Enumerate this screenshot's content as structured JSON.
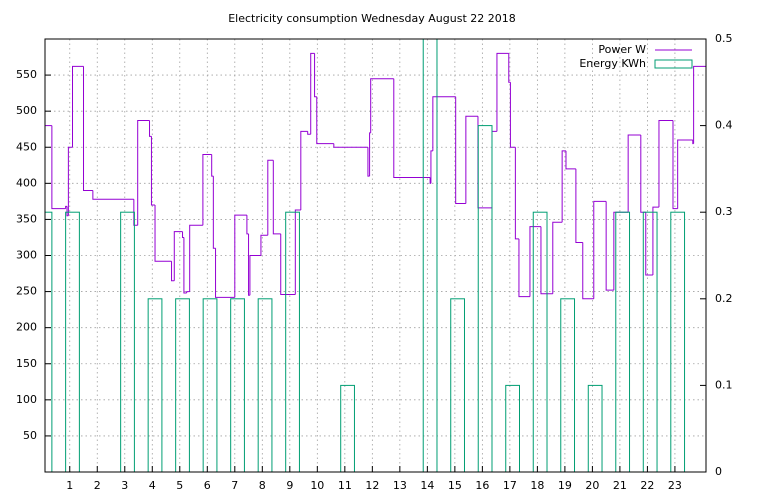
{
  "chart_data": {
    "type": "step-box",
    "title": "Electricity consumption Wednesday August 22 2018",
    "xlim": [
      0.1,
      24.13
    ],
    "xticks": [
      1,
      2,
      3,
      4,
      5,
      6,
      7,
      8,
      9,
      10,
      11,
      12,
      13,
      14,
      15,
      16,
      17,
      18,
      19,
      20,
      21,
      22,
      23
    ],
    "ylim": [
      0,
      600
    ],
    "yticks": [
      50,
      100,
      150,
      200,
      250,
      300,
      350,
      400,
      450,
      500,
      550
    ],
    "y2lim": [
      0,
      0.5
    ],
    "y2ticks": [
      0,
      0.1,
      0.2,
      0.3,
      0.4,
      0.5
    ],
    "grid": true,
    "legend": "top-right",
    "series": [
      {
        "name": "Power W",
        "color": "#9400d3",
        "style": "steps",
        "x": [
          0.1,
          0.35,
          0.85,
          0.9,
          0.95,
          1.1,
          1.5,
          1.84,
          3.33,
          3.47,
          3.9,
          3.97,
          4.1,
          4.7,
          4.8,
          5.1,
          5.15,
          5.25,
          5.36,
          5.84,
          6.16,
          6.22,
          6.3,
          7.0,
          7.44,
          7.5,
          7.55,
          7.95,
          8.2,
          8.4,
          8.67,
          9.2,
          9.4,
          9.65,
          9.76,
          9.9,
          9.98,
          10.6,
          11.84,
          11.9,
          11.94,
          12.78,
          14.1,
          14.13,
          14.2,
          15.03,
          15.4,
          15.84,
          16.35,
          16.53,
          16.96,
          17.02,
          17.2,
          17.33,
          17.73,
          18.13,
          18.56,
          18.9,
          19.04,
          19.4,
          19.65,
          20.05,
          20.5,
          20.78,
          21.3,
          21.76,
          21.94,
          22.2,
          22.42,
          22.93,
          23.1,
          23.65,
          23.68
        ],
        "values": [
          480,
          365,
          368,
          355,
          450,
          562,
          390,
          378,
          342,
          487,
          465,
          370,
          292,
          265,
          333,
          325,
          248,
          250,
          342,
          440,
          410,
          310,
          242,
          356,
          330,
          245,
          300,
          328,
          432,
          330,
          246,
          363,
          472,
          468,
          580,
          520,
          455,
          450,
          410,
          470,
          545,
          408,
          400,
          445,
          520,
          372,
          493,
          366,
          472,
          580,
          540,
          450,
          323,
          243,
          340,
          247,
          346,
          445,
          420,
          318,
          240,
          375,
          252,
          360,
          467,
          360,
          273,
          367,
          487,
          365,
          460,
          455,
          562
        ]
      },
      {
        "name": "Energy KWh",
        "color": "#009e73",
        "style": "boxes",
        "axis": "y2",
        "x": [
          0.1,
          1.1,
          2.1,
          3.1,
          4.1,
          5.1,
          6.1,
          7.1,
          8.1,
          9.1,
          10.1,
          11.1,
          12.1,
          13.1,
          14.1,
          15.1,
          16.1,
          17.1,
          18.1,
          19.1,
          20.1,
          21.1,
          22.1,
          23.1
        ],
        "values": [
          0.3,
          0.3,
          0,
          0.3,
          0.2,
          0.2,
          0.2,
          0.2,
          0.2,
          0.3,
          0,
          0.1,
          0,
          0,
          0.5,
          0.2,
          0.4,
          0.1,
          0.3,
          0.2,
          0.1,
          0.3,
          0.3,
          0.3
        ]
      }
    ]
  }
}
